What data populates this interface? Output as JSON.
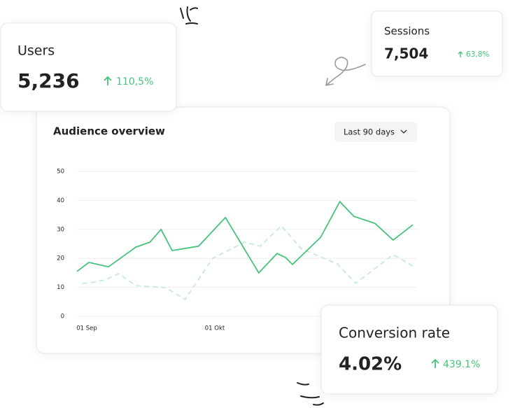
{
  "cards": {
    "users": {
      "label": "Users",
      "value": "5,236",
      "change": "110,5%"
    },
    "sessions": {
      "label": "Sessions",
      "value": "7,504",
      "change": "63,8%"
    },
    "conversion": {
      "label": "Conversion rate",
      "value": "4.02%",
      "change": "439.1%"
    }
  },
  "chart_data": {
    "type": "line",
    "title": "Audience overview",
    "range_selector": "Last 90 days",
    "xlim": [
      -2.3,
      76.4
    ],
    "xticks": [
      {
        "value": 0,
        "label": "01 Sep"
      },
      {
        "value": 30,
        "label": "01 Okt"
      }
    ],
    "ylim": [
      0,
      50
    ],
    "yticks": [
      0,
      10,
      20,
      30,
      40,
      50
    ],
    "grid": true,
    "series": [
      {
        "color": "#46c37b",
        "dashed": false,
        "x": [
          -2.3,
          0.5,
          5.1,
          11.5,
          14.8,
          17.4,
          20,
          26.2,
          32.5,
          40.3,
          44.6,
          46.6,
          48.2,
          54.8,
          59.3,
          62.6,
          67.5,
          71.8,
          76.4
        ],
        "values": [
          15.5,
          18.6,
          17.1,
          23.9,
          25.6,
          30,
          22.7,
          24.2,
          34.1,
          15,
          21.7,
          20.3,
          17.9,
          27.3,
          39.6,
          34.5,
          32.1,
          26.3,
          31.6
        ]
      },
      {
        "color": "#c6ebd5",
        "dashed": true,
        "x": [
          -1,
          1,
          4.3,
          7.5,
          11.5,
          18.5,
          23,
          29.5,
          37,
          40.6,
          45.6,
          50.2,
          58.7,
          63,
          71.8,
          76.4
        ],
        "values": [
          11.4,
          11.6,
          12.6,
          14.7,
          10.6,
          9.9,
          5.8,
          20,
          25.6,
          24.2,
          31.2,
          23.4,
          18.1,
          11.4,
          21.3,
          17.4
        ]
      }
    ]
  }
}
